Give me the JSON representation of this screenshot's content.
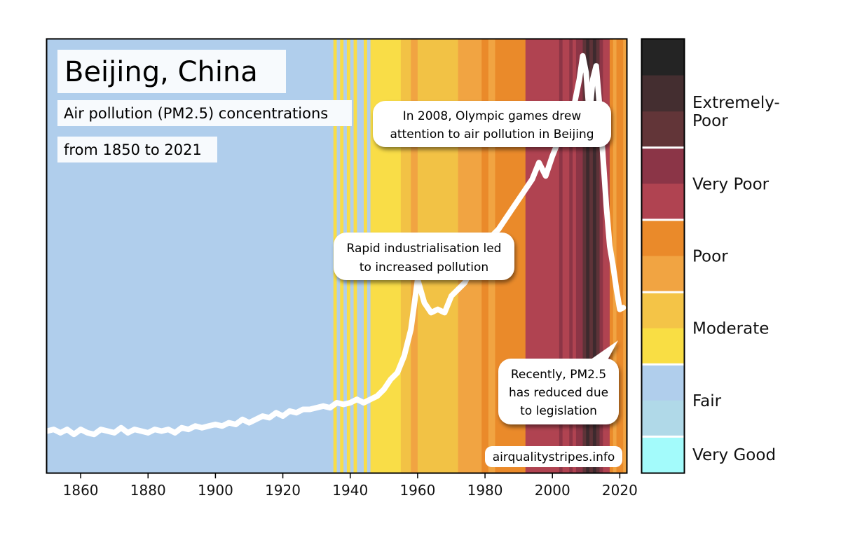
{
  "chart_data": {
    "type": "line",
    "title": "Beijing, China",
    "subtitle_lines": [
      "Air pollution (PM2.5) concentrations",
      "from 1850 to 2021"
    ],
    "xlim": [
      1850,
      2022
    ],
    "ylim": [
      0,
      130
    ],
    "x_ticks": [
      1860,
      1880,
      1900,
      1920,
      1940,
      1960,
      1980,
      2000,
      2020
    ],
    "grid": false,
    "line_color": "#ffffff",
    "series": [
      {
        "x": [
          1850,
          1852,
          1854,
          1856,
          1858,
          1860,
          1862,
          1864,
          1866,
          1868,
          1870,
          1872,
          1874,
          1876,
          1878,
          1880,
          1882,
          1884,
          1886,
          1888,
          1890,
          1892,
          1894,
          1896,
          1898,
          1900,
          1902,
          1904,
          1906,
          1908,
          1910,
          1912,
          1914,
          1916,
          1918,
          1920,
          1922,
          1924,
          1926,
          1928,
          1930,
          1932,
          1934,
          1936,
          1938,
          1940,
          1942,
          1944,
          1946,
          1948,
          1950,
          1952,
          1954,
          1956,
          1958,
          1960,
          1962,
          1964,
          1966,
          1968,
          1970,
          1972,
          1974,
          1976,
          1978,
          1980,
          1982,
          1984,
          1986,
          1988,
          1990,
          1992,
          1994,
          1996,
          1998,
          2000,
          2002,
          2004,
          2006,
          2008,
          2009,
          2010,
          2011,
          2012,
          2013,
          2014,
          2015,
          2016,
          2017,
          2018,
          2019,
          2020,
          2021
        ],
        "y": [
          12.5,
          13,
          12,
          13,
          11.5,
          13,
          12,
          11.5,
          13,
          12.5,
          12,
          13.5,
          12,
          13,
          12.5,
          12,
          13,
          12.5,
          13,
          12,
          13.5,
          13,
          14,
          13.5,
          14,
          14.5,
          14,
          15,
          14.5,
          16,
          15,
          16,
          17,
          16.5,
          18,
          17,
          18.5,
          18,
          19,
          19,
          19.5,
          20,
          19.5,
          21,
          20.5,
          21,
          22,
          21,
          22,
          23,
          25,
          28,
          30,
          35,
          43,
          58,
          51,
          48,
          49,
          48,
          53,
          55,
          57,
          61,
          66,
          69,
          71,
          73,
          76,
          79,
          82,
          85,
          88,
          93,
          89,
          95,
          100,
          103,
          108,
          118,
          125,
          120,
          107,
          118,
          122,
          110,
          95,
          80,
          68,
          62,
          55,
          49,
          49.5
        ],
        "values_note": ""
      }
    ],
    "stripes": {
      "categories_by_year": [
        {
          "from": 1850,
          "to": 1935,
          "category": "Fair"
        },
        {
          "from": 1935,
          "to": 1936,
          "category": "Moderate"
        },
        {
          "from": 1936,
          "to": 1937,
          "category": "Fair"
        },
        {
          "from": 1937,
          "to": 1938,
          "category": "Moderate"
        },
        {
          "from": 1938,
          "to": 1939,
          "category": "Fair"
        },
        {
          "from": 1939,
          "to": 1940,
          "category": "Moderate"
        },
        {
          "from": 1940,
          "to": 1941,
          "category": "Fair"
        },
        {
          "from": 1941,
          "to": 1942,
          "category": "Moderate"
        },
        {
          "from": 1942,
          "to": 1944,
          "category": "Fair"
        },
        {
          "from": 1944,
          "to": 1945,
          "category": "Moderate"
        },
        {
          "from": 1945,
          "to": 1946,
          "category": "Fair"
        },
        {
          "from": 1946,
          "to": 1955,
          "category": "Moderate"
        },
        {
          "from": 1955,
          "to": 1958,
          "category": "Moderate-high"
        },
        {
          "from": 1958,
          "to": 1960,
          "category": "Poor-low"
        },
        {
          "from": 1960,
          "to": 1972,
          "category": "Moderate-high"
        },
        {
          "from": 1972,
          "to": 1979,
          "category": "Poor-low"
        },
        {
          "from": 1979,
          "to": 1981,
          "category": "Poor"
        },
        {
          "from": 1981,
          "to": 1983,
          "category": "Poor-low"
        },
        {
          "from": 1983,
          "to": 1992,
          "category": "Poor"
        },
        {
          "from": 1992,
          "to": 2002,
          "category": "Very Poor"
        },
        {
          "from": 2002,
          "to": 2003,
          "category": "Very Poor-high"
        },
        {
          "from": 2003,
          "to": 2005,
          "category": "Very Poor"
        },
        {
          "from": 2005,
          "to": 2006,
          "category": "Very Poor-high"
        },
        {
          "from": 2006,
          "to": 2007,
          "category": "Very Poor"
        },
        {
          "from": 2007,
          "to": 2009,
          "category": "Very Poor-high"
        },
        {
          "from": 2009,
          "to": 2010,
          "category": "Extremely-Poor-low"
        },
        {
          "from": 2010,
          "to": 2011,
          "category": "Extremely-Poor"
        },
        {
          "from": 2011,
          "to": 2012,
          "category": "Extremely-Poor-low"
        },
        {
          "from": 2012,
          "to": 2013,
          "category": "Extremely-Poor"
        },
        {
          "from": 2013,
          "to": 2014,
          "category": "Extremely-Poor-low"
        },
        {
          "from": 2014,
          "to": 2015,
          "category": "Very Poor-high"
        },
        {
          "from": 2015,
          "to": 2017,
          "category": "Very Poor"
        },
        {
          "from": 2017,
          "to": 2018,
          "category": "Poor"
        },
        {
          "from": 2018,
          "to": 2019,
          "category": "Poor-low"
        },
        {
          "from": 2019,
          "to": 2021,
          "category": "Poor"
        },
        {
          "from": 2021,
          "to": 2022,
          "category": "Poor-low"
        }
      ],
      "colors": {
        "Fair": "#b0ceec",
        "Moderate": "#f9dd47",
        "Moderate-high": "#f2c245",
        "Poor-low": "#f1a442",
        "Poor": "#ea8a2a",
        "Very Poor": "#b04351",
        "Very Poor-high": "#8c3546",
        "Extremely-Poor-low": "#5e3338",
        "Extremely-Poor": "#3d2a2e"
      }
    },
    "annotations": [
      {
        "lines": [
          "In 2008, Olympic games drew",
          "attention to air pollution in Beijing"
        ]
      },
      {
        "lines": [
          "Rapid industrialisation led",
          "to increased pollution"
        ]
      },
      {
        "lines": [
          "Recently, PM2.5",
          "has reduced due",
          "to legislation"
        ]
      }
    ],
    "source": "airqualitystripes.info",
    "legend": {
      "placement": "right",
      "entries": [
        {
          "label_lines": [
            "Extremely-",
            "Poor"
          ],
          "colors": [
            "#242424",
            "#442e30",
            "#623538"
          ]
        },
        {
          "label_lines": [
            "Very Poor"
          ],
          "colors": [
            "#8b3547",
            "#b04351"
          ]
        },
        {
          "label_lines": [
            "Poor"
          ],
          "colors": [
            "#ea8a2a",
            "#f1a442"
          ]
        },
        {
          "label_lines": [
            "Moderate"
          ],
          "colors": [
            "#f4c447",
            "#f9de44"
          ]
        },
        {
          "label_lines": [
            "Fair"
          ],
          "colors": [
            "#b0ceec",
            "#b0d9e8"
          ]
        },
        {
          "label_lines": [
            "Very Good"
          ],
          "colors": [
            "#a3fbfb"
          ]
        }
      ]
    }
  }
}
